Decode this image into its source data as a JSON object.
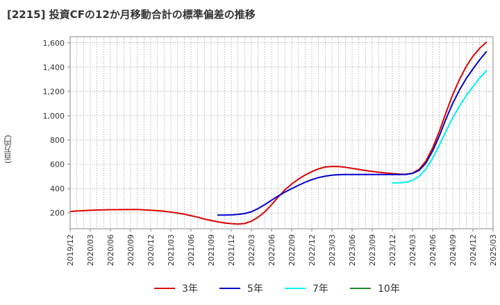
{
  "chart_data": {
    "type": "line",
    "title": "[2215]  投資CFの12か月移動合計の標準偏差の推移",
    "ylabel": "(百万円)",
    "xlabel": "",
    "ylim": [
      70,
      1650
    ],
    "yticks": [
      200,
      400,
      600,
      800,
      1000,
      1200,
      1400,
      1600
    ],
    "ytick_labels": [
      "200",
      "400",
      "600",
      "800",
      "1,000",
      "1,200",
      "1,400",
      "1,600"
    ],
    "xticks": [
      "2019/12",
      "2020/03",
      "2020/06",
      "2020/09",
      "2020/12",
      "2021/03",
      "2021/06",
      "2021/09",
      "2021/12",
      "2022/03",
      "2022/06",
      "2022/09",
      "2022/12",
      "2023/03",
      "2023/06",
      "2023/09",
      "2023/12",
      "2024/03",
      "2024/06",
      "2024/09",
      "2024/12",
      "2025/03"
    ],
    "grid": true,
    "legend_position": "bottom",
    "series": [
      {
        "name": "3年",
        "color": "#dd0000",
        "points": [
          [
            "2019/12",
            212
          ],
          [
            "2020/01",
            216
          ],
          [
            "2020/02",
            219
          ],
          [
            "2020/03",
            222
          ],
          [
            "2020/04",
            224
          ],
          [
            "2020/05",
            226
          ],
          [
            "2020/06",
            227
          ],
          [
            "2020/07",
            227
          ],
          [
            "2020/08",
            228
          ],
          [
            "2020/09",
            228
          ],
          [
            "2020/10",
            228
          ],
          [
            "2020/11",
            226
          ],
          [
            "2020/12",
            223
          ],
          [
            "2021/01",
            219
          ],
          [
            "2021/02",
            214
          ],
          [
            "2021/03",
            207
          ],
          [
            "2021/04",
            199
          ],
          [
            "2021/05",
            190
          ],
          [
            "2021/06",
            178
          ],
          [
            "2021/07",
            165
          ],
          [
            "2021/08",
            150
          ],
          [
            "2021/09",
            138
          ],
          [
            "2021/10",
            127
          ],
          [
            "2021/11",
            118
          ],
          [
            "2021/12",
            112
          ],
          [
            "2022/01",
            109
          ],
          [
            "2022/02",
            113
          ],
          [
            "2022/03",
            132
          ],
          [
            "2022/04",
            165
          ],
          [
            "2022/05",
            210
          ],
          [
            "2022/06",
            268
          ],
          [
            "2022/07",
            332
          ],
          [
            "2022/08",
            390
          ],
          [
            "2022/09",
            438
          ],
          [
            "2022/10",
            478
          ],
          [
            "2022/11",
            512
          ],
          [
            "2022/12",
            540
          ],
          [
            "2023/01",
            563
          ],
          [
            "2023/02",
            578
          ],
          [
            "2023/03",
            583
          ],
          [
            "2023/04",
            582
          ],
          [
            "2023/05",
            576
          ],
          [
            "2023/06",
            567
          ],
          [
            "2023/07",
            558
          ],
          [
            "2023/08",
            549
          ],
          [
            "2023/09",
            542
          ],
          [
            "2023/10",
            535
          ],
          [
            "2023/11",
            529
          ],
          [
            "2023/12",
            524
          ],
          [
            "2024/01",
            520
          ],
          [
            "2024/02",
            518
          ],
          [
            "2024/03",
            528
          ],
          [
            "2024/04",
            560
          ],
          [
            "2024/05",
            627
          ],
          [
            "2024/06",
            735
          ],
          [
            "2024/07",
            873
          ],
          [
            "2024/08",
            1027
          ],
          [
            "2024/09",
            1175
          ],
          [
            "2024/10",
            1300
          ],
          [
            "2024/11",
            1405
          ],
          [
            "2024/12",
            1490
          ],
          [
            "2025/01",
            1555
          ],
          [
            "2025/02",
            1605
          ]
        ]
      },
      {
        "name": "5年",
        "color": "#0000cc",
        "points": [
          [
            "2021/10",
            183
          ],
          [
            "2021/11",
            183
          ],
          [
            "2021/12",
            184
          ],
          [
            "2022/01",
            188
          ],
          [
            "2022/02",
            195
          ],
          [
            "2022/03",
            210
          ],
          [
            "2022/04",
            236
          ],
          [
            "2022/05",
            268
          ],
          [
            "2022/06",
            305
          ],
          [
            "2022/07",
            340
          ],
          [
            "2022/08",
            372
          ],
          [
            "2022/09",
            400
          ],
          [
            "2022/10",
            427
          ],
          [
            "2022/11",
            452
          ],
          [
            "2022/12",
            474
          ],
          [
            "2023/01",
            491
          ],
          [
            "2023/02",
            503
          ],
          [
            "2023/03",
            511
          ],
          [
            "2023/04",
            515
          ],
          [
            "2023/05",
            516
          ],
          [
            "2023/06",
            516
          ],
          [
            "2023/07",
            516
          ],
          [
            "2023/08",
            516
          ],
          [
            "2023/09",
            516
          ],
          [
            "2023/10",
            516
          ],
          [
            "2023/11",
            516
          ],
          [
            "2023/12",
            516
          ],
          [
            "2024/01",
            516
          ],
          [
            "2024/02",
            517
          ],
          [
            "2024/03",
            526
          ],
          [
            "2024/04",
            550
          ],
          [
            "2024/05",
            610
          ],
          [
            "2024/06",
            710
          ],
          [
            "2024/07",
            835
          ],
          [
            "2024/08",
            975
          ],
          [
            "2024/09",
            1103
          ],
          [
            "2024/10",
            1212
          ],
          [
            "2024/11",
            1306
          ],
          [
            "2024/12",
            1385
          ],
          [
            "2025/01",
            1460
          ],
          [
            "2025/02",
            1527
          ]
        ]
      },
      {
        "name": "7年",
        "color": "#00eeee",
        "points": [
          [
            "2023/12",
            447
          ],
          [
            "2024/01",
            448
          ],
          [
            "2024/02",
            452
          ],
          [
            "2024/03",
            468
          ],
          [
            "2024/04",
            502
          ],
          [
            "2024/05",
            562
          ],
          [
            "2024/06",
            650
          ],
          [
            "2024/07",
            760
          ],
          [
            "2024/08",
            875
          ],
          [
            "2024/09",
            985
          ],
          [
            "2024/10",
            1080
          ],
          [
            "2024/11",
            1165
          ],
          [
            "2024/12",
            1240
          ],
          [
            "2025/01",
            1310
          ],
          [
            "2025/02",
            1370
          ]
        ]
      },
      {
        "name": "10年",
        "color": "#228b22",
        "points": []
      }
    ]
  }
}
